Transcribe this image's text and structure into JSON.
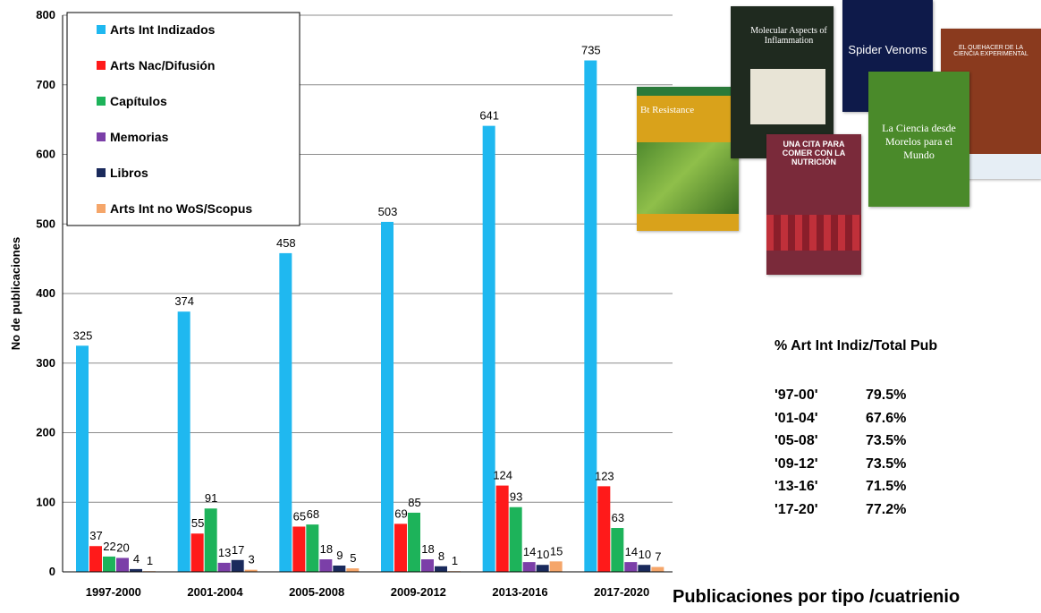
{
  "chart_data": {
    "type": "bar",
    "categories": [
      "1997-2000",
      "2001-2004",
      "2005-2008",
      "2009-2012",
      "2013-2016",
      "2017-2020"
    ],
    "series": [
      {
        "name": "Arts Int Indizados",
        "color": "#1FB8F0",
        "values": [
          325,
          374,
          458,
          503,
          641,
          735
        ]
      },
      {
        "name": "Arts Nac/Difusión",
        "color": "#FF1A1A",
        "values": [
          37,
          55,
          65,
          69,
          124,
          123
        ]
      },
      {
        "name": "Capítulos",
        "color": "#1DB35A",
        "values": [
          22,
          91,
          68,
          85,
          93,
          63
        ]
      },
      {
        "name": "Memorias",
        "color": "#7B3FA8",
        "values": [
          20,
          13,
          18,
          18,
          14,
          14
        ]
      },
      {
        "name": "Libros",
        "color": "#1A2A5C",
        "values": [
          4,
          17,
          9,
          8,
          10,
          10
        ]
      },
      {
        "name": "Arts Int no WoS/Scopus",
        "color": "#F5A66A",
        "values": [
          1,
          3,
          5,
          1,
          15,
          7
        ]
      }
    ],
    "ylabel": "No de publicaciones",
    "xlabel": "Publicaciones por tipo /cuatrienio",
    "ylim": [
      0,
      800
    ],
    "yticks": [
      0,
      100,
      200,
      300,
      400,
      500,
      600,
      700,
      800
    ],
    "grid": true,
    "legend": "top-left"
  },
  "percent_table": {
    "title": "% Art Int Indiz/Total Pub",
    "rows": [
      {
        "period": "'97-00'",
        "value": "79.5%"
      },
      {
        "period": "'01-04'",
        "value": "67.6%"
      },
      {
        "period": "'05-08'",
        "value": "73.5%"
      },
      {
        "period": "'09-12'",
        "value": "73.5%"
      },
      {
        "period": "'13-16'",
        "value": "71.5%"
      },
      {
        "period": "'17-20'",
        "value": "77.2%"
      }
    ]
  },
  "book_covers": [
    {
      "title": "Bt Resistance",
      "color": "#D9A21B"
    },
    {
      "title": "Molecular Aspects of Inflammation",
      "color": "#1F2A1F"
    },
    {
      "title": "Spider Venoms",
      "color": "#0E1A4A"
    },
    {
      "title": "EL QUEHACER DE LA CIENCIA EXPERIMENTAL",
      "color": "#8A3A1E"
    },
    {
      "title": "UNA CITA PARA COMER CON LA NUTRICIÓN",
      "color": "#7A2A3A"
    },
    {
      "title": "La Ciencia desde Morelos para el Mundo",
      "color": "#4A8A2A"
    }
  ]
}
